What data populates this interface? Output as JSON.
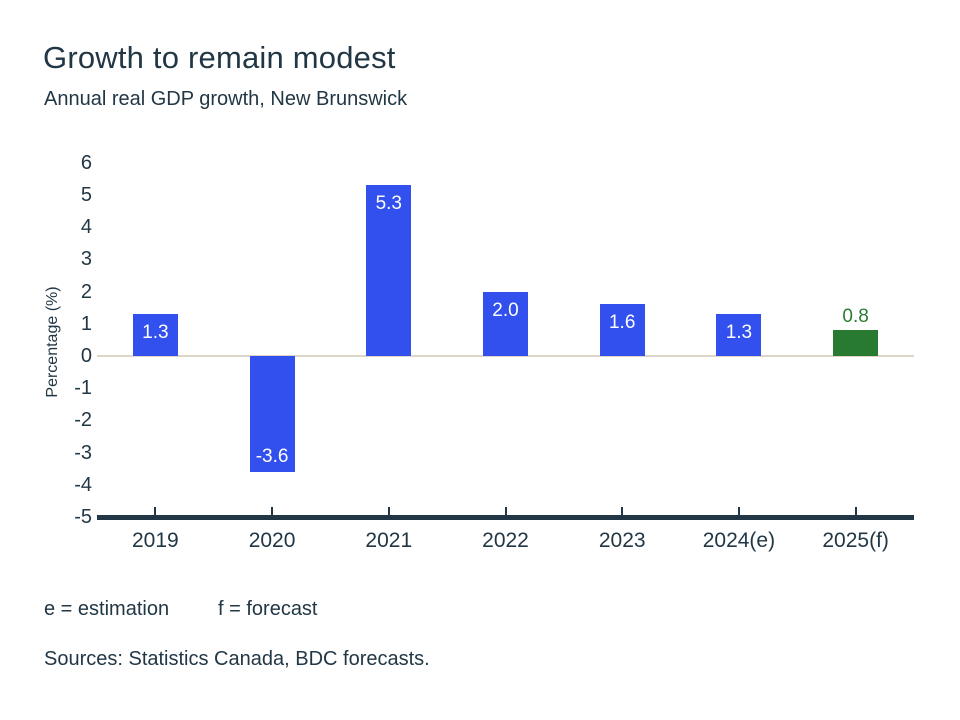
{
  "chart": {
    "title": "Growth to remain modest",
    "subtitle": "Annual real GDP growth, New Brunswick",
    "ylabel": "Percentage (%)"
  },
  "chart_data": {
    "type": "bar",
    "title": "Growth to remain modest",
    "subtitle": "Annual real GDP growth, New Brunswick",
    "xlabel": "",
    "ylabel": "Percentage (%)",
    "ylim": [
      -5,
      6
    ],
    "yticks": [
      6,
      5,
      4,
      3,
      2,
      1,
      0,
      -1,
      -2,
      -3,
      -4,
      -5
    ],
    "grid": false,
    "zero_line": true,
    "legend": "none",
    "categories": [
      "2019",
      "2020",
      "2021",
      "2022",
      "2023",
      "2024(e)",
      "2025(f)"
    ],
    "values": [
      1.3,
      -3.6,
      5.3,
      2.0,
      1.6,
      1.3,
      0.8
    ],
    "points": [
      {
        "category": "2019",
        "value": 1.3,
        "label": "1.3",
        "color": "#3150ee",
        "label_color": "#ffffff",
        "label_position": "inside-top"
      },
      {
        "category": "2020",
        "value": -3.6,
        "label": "-3.6",
        "color": "#3150ee",
        "label_color": "#ffffff",
        "label_position": "inside-bottom"
      },
      {
        "category": "2021",
        "value": 5.3,
        "label": "5.3",
        "color": "#3150ee",
        "label_color": "#ffffff",
        "label_position": "inside-top"
      },
      {
        "category": "2022",
        "value": 2.0,
        "label": "2.0",
        "color": "#3150ee",
        "label_color": "#ffffff",
        "label_position": "inside-top"
      },
      {
        "category": "2023",
        "value": 1.6,
        "label": "1.6",
        "color": "#3150ee",
        "label_color": "#ffffff",
        "label_position": "inside-top"
      },
      {
        "category": "2024(e)",
        "value": 1.3,
        "label": "1.3",
        "color": "#3150ee",
        "label_color": "#ffffff",
        "label_position": "inside-top"
      },
      {
        "category": "2025(f)",
        "value": 0.8,
        "label": "0.8",
        "color": "#287a30",
        "label_color": "#2b7d33",
        "label_position": "above"
      }
    ]
  },
  "colors": {
    "bar_blue": "#3150ee",
    "bar_green": "#287a30",
    "text_navy": "#223745",
    "zero_line": "#ddd5c7",
    "background": "#ffffff"
  },
  "footnotes": {
    "estimation": "e = estimation",
    "forecast": "f = forecast",
    "sources": "Sources: Statistics Canada, BDC forecasts."
  }
}
